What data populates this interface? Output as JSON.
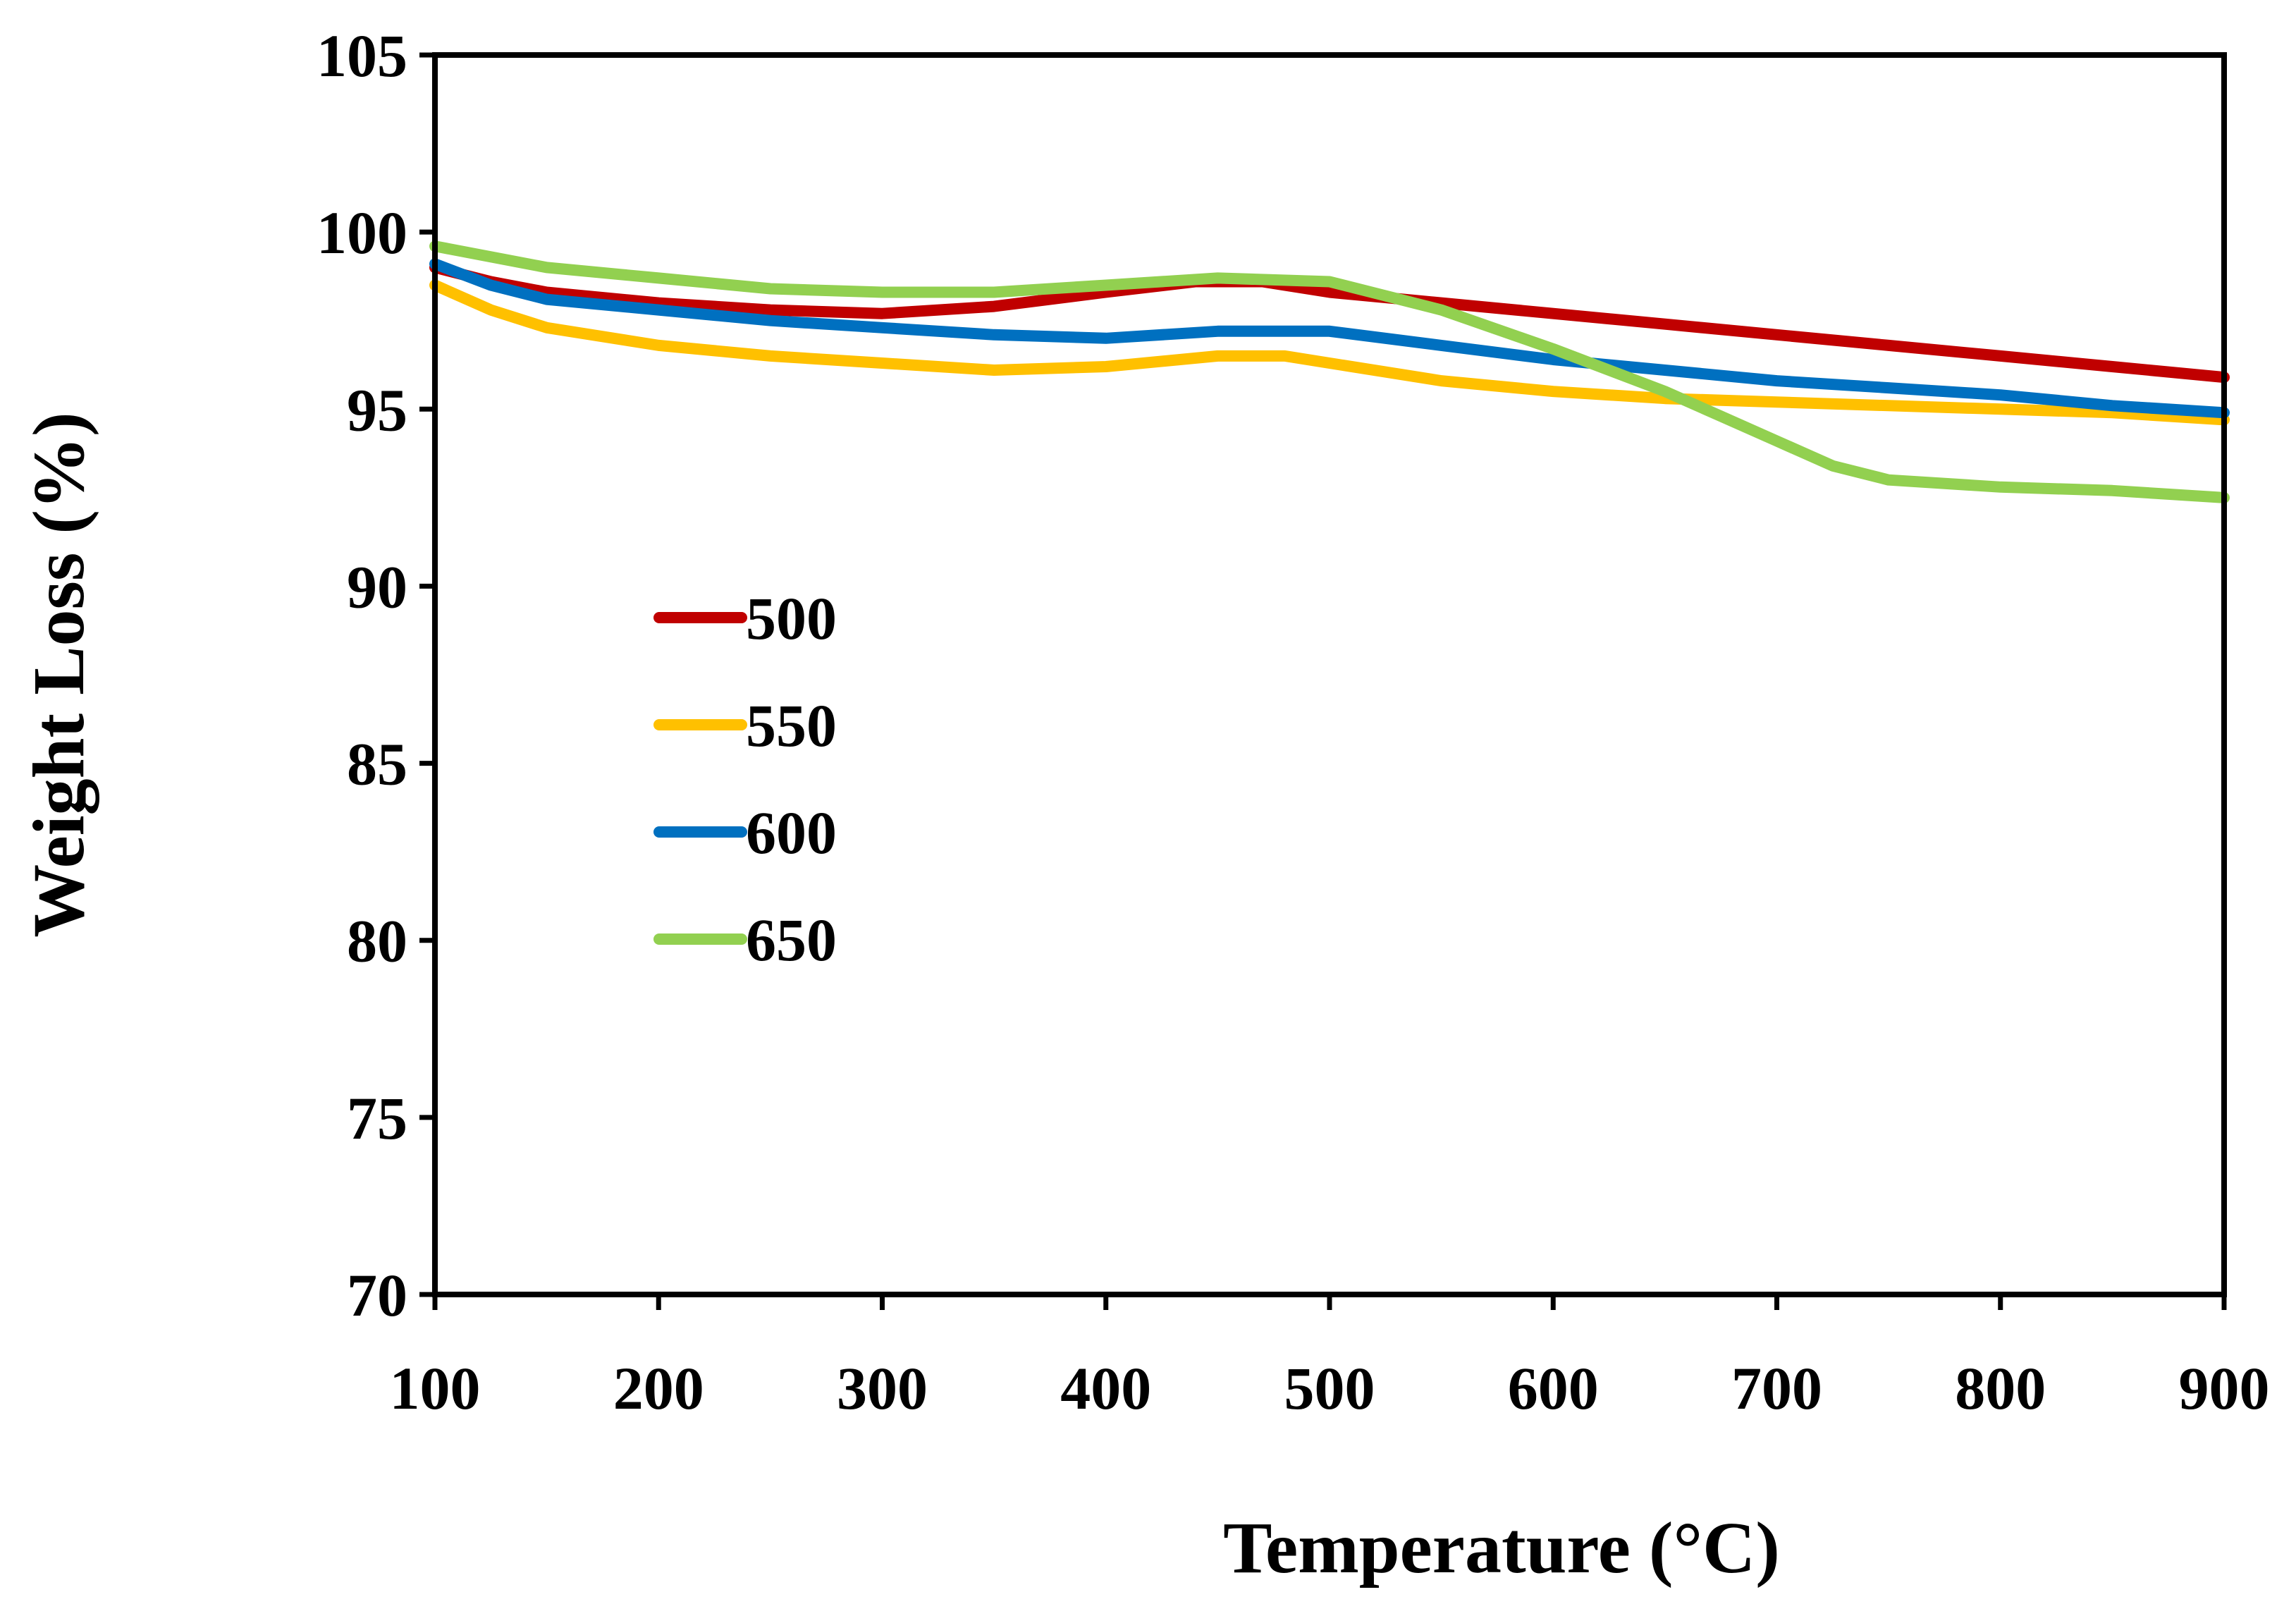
{
  "chart_data": {
    "type": "line",
    "title": "",
    "xlabel": "Temperature (°C)",
    "ylabel": "Weight Loss (%)",
    "xlim": [
      100,
      900
    ],
    "ylim": [
      70,
      105
    ],
    "xticks": [
      100,
      200,
      300,
      400,
      500,
      600,
      700,
      800,
      900
    ],
    "yticks": [
      70,
      75,
      80,
      85,
      90,
      95,
      100,
      105
    ],
    "grid": false,
    "legend_position": "left-center",
    "series": [
      {
        "name": "500",
        "color": "#c00000",
        "points": [
          [
            100,
            99.0
          ],
          [
            125,
            98.6
          ],
          [
            150,
            98.3
          ],
          [
            200,
            98.0
          ],
          [
            250,
            97.8
          ],
          [
            300,
            97.7
          ],
          [
            350,
            97.9
          ],
          [
            400,
            98.3
          ],
          [
            440,
            98.6
          ],
          [
            470,
            98.6
          ],
          [
            500,
            98.3
          ],
          [
            550,
            98.0
          ],
          [
            600,
            97.7
          ],
          [
            650,
            97.4
          ],
          [
            700,
            97.1
          ],
          [
            750,
            96.8
          ],
          [
            800,
            96.5
          ],
          [
            850,
            96.2
          ],
          [
            900,
            95.9
          ]
        ]
      },
      {
        "name": "550",
        "color": "#ffc000",
        "points": [
          [
            100,
            98.5
          ],
          [
            125,
            97.8
          ],
          [
            150,
            97.3
          ],
          [
            200,
            96.8
          ],
          [
            250,
            96.5
          ],
          [
            300,
            96.3
          ],
          [
            350,
            96.1
          ],
          [
            400,
            96.2
          ],
          [
            450,
            96.5
          ],
          [
            480,
            96.5
          ],
          [
            500,
            96.3
          ],
          [
            550,
            95.8
          ],
          [
            600,
            95.5
          ],
          [
            650,
            95.3
          ],
          [
            700,
            95.2
          ],
          [
            750,
            95.1
          ],
          [
            800,
            95.0
          ],
          [
            850,
            94.9
          ],
          [
            900,
            94.7
          ]
        ]
      },
      {
        "name": "600",
        "color": "#0070c0",
        "points": [
          [
            100,
            99.1
          ],
          [
            125,
            98.5
          ],
          [
            150,
            98.1
          ],
          [
            200,
            97.8
          ],
          [
            250,
            97.5
          ],
          [
            300,
            97.3
          ],
          [
            350,
            97.1
          ],
          [
            400,
            97.0
          ],
          [
            450,
            97.2
          ],
          [
            500,
            97.2
          ],
          [
            550,
            96.8
          ],
          [
            600,
            96.4
          ],
          [
            650,
            96.1
          ],
          [
            700,
            95.8
          ],
          [
            750,
            95.6
          ],
          [
            800,
            95.4
          ],
          [
            850,
            95.1
          ],
          [
            900,
            94.9
          ]
        ]
      },
      {
        "name": "650",
        "color": "#92d050",
        "points": [
          [
            100,
            99.6
          ],
          [
            150,
            99.0
          ],
          [
            200,
            98.7
          ],
          [
            250,
            98.4
          ],
          [
            300,
            98.3
          ],
          [
            350,
            98.3
          ],
          [
            400,
            98.5
          ],
          [
            450,
            98.7
          ],
          [
            500,
            98.6
          ],
          [
            550,
            97.8
          ],
          [
            600,
            96.7
          ],
          [
            650,
            95.5
          ],
          [
            675,
            94.8
          ],
          [
            700,
            94.1
          ],
          [
            725,
            93.4
          ],
          [
            750,
            93.0
          ],
          [
            800,
            92.8
          ],
          [
            850,
            92.7
          ],
          [
            900,
            92.5
          ]
        ]
      }
    ]
  }
}
